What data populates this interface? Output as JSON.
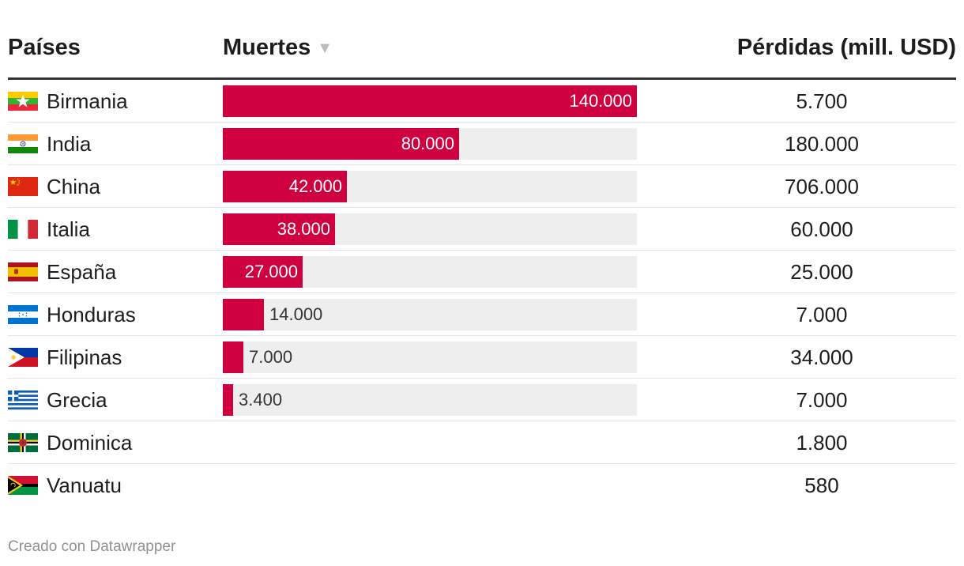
{
  "columns": {
    "country": "Países",
    "deaths": "Muertes",
    "sort_icon": "▼",
    "losses": "Pérdidas (mill. USD)"
  },
  "chart_data": {
    "type": "table",
    "bar_column": "Muertes",
    "bar_max": 140000,
    "bar_color": "#cf0040",
    "track_color": "#eeeeee",
    "sorted_by": "Muertes, descending",
    "rows": [
      {
        "country": "Birmania",
        "flag": "myanmar-flag-icon",
        "deaths": 140000,
        "deaths_label": "140.000",
        "losses": "5.700"
      },
      {
        "country": "India",
        "flag": "india-flag-icon",
        "deaths": 80000,
        "deaths_label": "80.000",
        "losses": "180.000"
      },
      {
        "country": "China",
        "flag": "china-flag-icon",
        "deaths": 42000,
        "deaths_label": "42.000",
        "losses": "706.000"
      },
      {
        "country": "Italia",
        "flag": "italy-flag-icon",
        "deaths": 38000,
        "deaths_label": "38.000",
        "losses": "60.000"
      },
      {
        "country": "España",
        "flag": "spain-flag-icon",
        "deaths": 27000,
        "deaths_label": "27.000",
        "losses": "25.000"
      },
      {
        "country": "Honduras",
        "flag": "honduras-flag-icon",
        "deaths": 14000,
        "deaths_label": "14.000",
        "losses": "7.000"
      },
      {
        "country": "Filipinas",
        "flag": "philippines-flag-icon",
        "deaths": 7000,
        "deaths_label": "7.000",
        "losses": "34.000"
      },
      {
        "country": "Grecia",
        "flag": "greece-flag-icon",
        "deaths": 3400,
        "deaths_label": "3.400",
        "losses": "7.000"
      },
      {
        "country": "Dominica",
        "flag": "dominica-flag-icon",
        "deaths": null,
        "deaths_label": "",
        "losses": "1.800"
      },
      {
        "country": "Vanuatu",
        "flag": "vanuatu-flag-icon",
        "deaths": null,
        "deaths_label": "",
        "losses": "580"
      }
    ]
  },
  "footer": {
    "credit": "Creado con Datawrapper"
  }
}
